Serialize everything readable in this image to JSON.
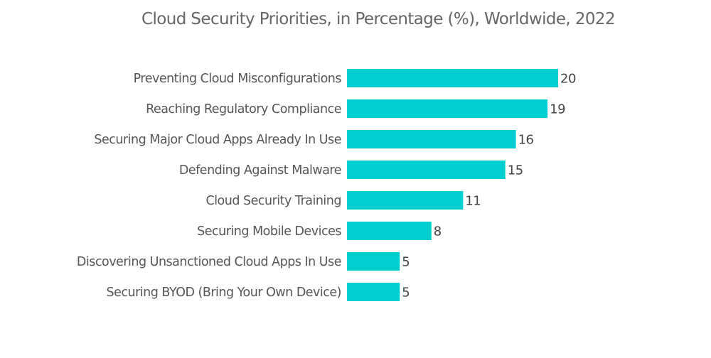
{
  "chart_data": {
    "type": "bar",
    "orientation": "horizontal",
    "title": "Cloud Security Priorities, in Percentage (%), Worldwide, 2022",
    "xlabel": "",
    "ylabel": "",
    "categories": [
      "Preventing Cloud Misconfigurations",
      "Reaching Regulatory Compliance",
      "Securing Major Cloud Apps Already In Use",
      "Defending Against Malware",
      "Cloud Security Training",
      "Securing Mobile Devices",
      "Discovering Unsanctioned Cloud Apps In Use",
      "Securing BYOD (Bring Your Own Device)"
    ],
    "values": [
      20,
      19,
      16,
      15,
      11,
      8,
      5,
      5
    ],
    "value_labels": [
      "20",
      "19",
      "16",
      "15",
      "11",
      "8",
      "5",
      "5"
    ],
    "xlim": [
      0,
      20
    ],
    "grid": false,
    "legend": "none",
    "bar_color": "#00CED1"
  }
}
